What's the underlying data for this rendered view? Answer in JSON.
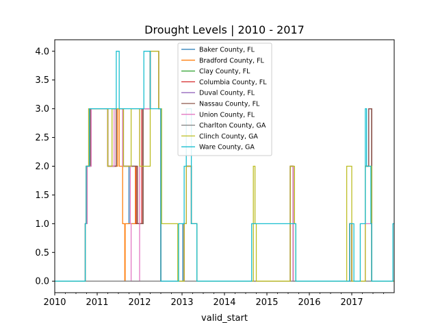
{
  "chart_data": {
    "type": "line",
    "title": "Drought Levels | 2010 - 2017",
    "xlabel": "valid_start",
    "ylabel": "",
    "xlim": [
      2010.0,
      2018.0
    ],
    "ylim": [
      -0.2,
      4.2
    ],
    "x_ticks": [
      2010,
      2011,
      2012,
      2013,
      2014,
      2015,
      2016,
      2017
    ],
    "y_ticks": [
      0.0,
      0.5,
      1.0,
      1.5,
      2.0,
      2.5,
      3.0,
      3.5,
      4.0
    ],
    "x_tick_labels": [
      "2010",
      "2011",
      "2012",
      "2013",
      "2014",
      "2015",
      "2016",
      "2017"
    ],
    "y_tick_labels": [
      "0.0",
      "0.5",
      "1.0",
      "1.5",
      "2.0",
      "2.5",
      "3.0",
      "3.5",
      "4.0"
    ],
    "grid": false,
    "legend_position": "top-center",
    "series": [
      {
        "name": "Baker County, FL",
        "color": "#1f77b4",
        "x": [
          2010.0,
          2010.72,
          2010.74,
          2010.8,
          2011.25,
          2011.45,
          2011.62,
          2011.75,
          2011.8,
          2012.08,
          2012.25,
          2012.45,
          2012.5,
          2013.0,
          2013.02,
          2013.1,
          2013.22,
          2013.35,
          2015.42,
          2015.55,
          2015.62,
          2016.9,
          2016.95,
          2017.0,
          2017.18,
          2017.32,
          2017.4,
          2017.47,
          2018.0
        ],
        "y": [
          0,
          1,
          2,
          3,
          2,
          3,
          2,
          1,
          1,
          3,
          4,
          3,
          0,
          0,
          1,
          2,
          1,
          0,
          0,
          2,
          0,
          0,
          1,
          0,
          0,
          2,
          3,
          0,
          0
        ]
      },
      {
        "name": "Bradford County, FL",
        "color": "#ff7f0e",
        "x": [
          2010.0,
          2010.72,
          2010.74,
          2010.82,
          2011.25,
          2011.48,
          2011.52,
          2011.6,
          2011.65,
          2011.66,
          2011.9,
          2011.95,
          2012.08,
          2012.25,
          2012.45,
          2012.5,
          2013.0,
          2013.05,
          2013.1,
          2013.22,
          2013.35,
          2015.42,
          2015.55,
          2015.62,
          2016.9,
          2016.95,
          2017.0,
          2017.18,
          2017.32,
          2017.4,
          2017.47,
          2018.0
        ],
        "y": [
          0,
          1,
          2,
          3,
          2,
          3,
          2,
          1,
          0,
          1,
          2,
          1,
          3,
          4,
          3,
          0,
          0,
          1,
          2,
          1,
          0,
          0,
          2,
          0,
          0,
          1,
          0,
          0,
          2,
          3,
          0,
          0
        ]
      },
      {
        "name": "Clay County, FL",
        "color": "#2ca02c",
        "x": [
          2010.0,
          2010.72,
          2010.76,
          2010.84,
          2011.25,
          2011.45,
          2011.6,
          2011.8,
          2011.92,
          2012.08,
          2012.25,
          2012.45,
          2012.5,
          2013.0,
          2013.05,
          2013.1,
          2013.22,
          2013.35,
          2015.42,
          2015.55,
          2015.62,
          2016.9,
          2016.95,
          2017.0,
          2017.18,
          2017.32,
          2017.4,
          2017.47,
          2018.0
        ],
        "y": [
          0,
          1,
          2,
          3,
          2,
          3,
          2,
          2,
          1,
          3,
          4,
          3,
          0,
          0,
          1,
          2,
          1,
          0,
          0,
          2,
          0,
          0,
          1,
          0,
          0,
          2,
          3,
          0,
          0
        ]
      },
      {
        "name": "Columbia County, FL",
        "color": "#d62728",
        "x": [
          2010.0,
          2010.72,
          2010.76,
          2010.84,
          2011.25,
          2011.45,
          2011.62,
          2011.85,
          2011.92,
          2012.05,
          2012.25,
          2012.45,
          2012.5,
          2013.0,
          2013.05,
          2013.1,
          2013.22,
          2013.35,
          2015.42,
          2015.55,
          2015.62,
          2016.9,
          2016.95,
          2017.0,
          2017.18,
          2017.32,
          2017.4,
          2017.47,
          2018.0
        ],
        "y": [
          0,
          1,
          2,
          3,
          2,
          3,
          2,
          2,
          1,
          3,
          4,
          3,
          0,
          0,
          1,
          2,
          1,
          0,
          0,
          2,
          0,
          0,
          1,
          0,
          0,
          2,
          3,
          0,
          0
        ]
      },
      {
        "name": "Duval County, FL",
        "color": "#9467bd",
        "x": [
          2010.0,
          2010.72,
          2010.76,
          2010.8,
          2011.25,
          2011.45,
          2011.6,
          2011.8,
          2011.95,
          2012.08,
          2012.25,
          2012.45,
          2012.5,
          2013.0,
          2013.05,
          2013.1,
          2013.22,
          2013.35,
          2015.42,
          2015.55,
          2015.62,
          2016.9,
          2016.95,
          2017.0,
          2017.18,
          2017.32,
          2017.4,
          2017.47,
          2018.0
        ],
        "y": [
          0,
          1,
          2,
          3,
          2,
          3,
          2,
          2,
          1,
          3,
          4,
          3,
          0,
          0,
          1,
          2,
          1,
          0,
          0,
          2,
          0,
          0,
          1,
          0,
          0,
          2,
          3,
          0,
          0
        ]
      },
      {
        "name": "Nassau County, FL",
        "color": "#8c564b",
        "x": [
          2010.0,
          2010.72,
          2010.76,
          2010.84,
          2011.25,
          2011.45,
          2011.6,
          2011.8,
          2011.95,
          2012.08,
          2012.25,
          2012.45,
          2012.5,
          2013.0,
          2013.05,
          2013.1,
          2013.22,
          2013.35,
          2015.42,
          2015.55,
          2015.62,
          2016.9,
          2016.95,
          2017.0,
          2017.18,
          2017.32,
          2017.4,
          2017.47,
          2018.0
        ],
        "y": [
          0,
          1,
          2,
          3,
          2,
          3,
          2,
          2,
          1,
          3,
          4,
          3,
          0,
          0,
          1,
          2,
          1,
          0,
          0,
          2,
          0,
          0,
          1,
          0,
          0,
          2,
          3,
          0,
          0
        ]
      },
      {
        "name": "Union County, FL",
        "color": "#e377c2",
        "x": [
          2010.0,
          2010.72,
          2010.76,
          2010.86,
          2011.25,
          2011.4,
          2011.6,
          2011.78,
          2011.8,
          2012.0,
          2012.25,
          2012.45,
          2012.5,
          2013.0,
          2013.05,
          2013.1,
          2013.22,
          2013.35,
          2015.42,
          2015.55,
          2015.62,
          2016.9,
          2016.95,
          2017.0,
          2017.18,
          2017.32,
          2017.4,
          2017.47,
          2018.0
        ],
        "y": [
          0,
          1,
          2,
          3,
          2,
          3,
          2,
          1,
          0,
          3,
          4,
          3,
          0,
          0,
          1,
          2,
          1,
          0,
          0,
          2,
          0,
          0,
          1,
          0,
          0,
          1,
          1,
          0,
          0
        ]
      },
      {
        "name": "Charlton County, GA",
        "color": "#7f7f7f",
        "x": [
          2010.0,
          2018.0
        ],
        "y": [
          0,
          0
        ]
      },
      {
        "name": "Clinch County, GA",
        "color": "#bcbd22",
        "x": [
          2010.0,
          2010.72,
          2010.74,
          2010.8,
          2011.25,
          2011.35,
          2011.62,
          2011.8,
          2012.0,
          2012.25,
          2012.45,
          2012.52,
          2012.9,
          2013.05,
          2013.1,
          2013.22,
          2013.35,
          2014.66,
          2014.68,
          2014.72,
          2014.75,
          2015.42,
          2015.55,
          2015.65,
          2015.68,
          2016.88,
          2017.0,
          2017.18,
          2017.32,
          2017.4,
          2017.47,
          2018.0
        ],
        "y": [
          0,
          1,
          2,
          3,
          2,
          3,
          2,
          3,
          2,
          4,
          3,
          1,
          0,
          1,
          2,
          1,
          0,
          0,
          2,
          1,
          0,
          0,
          2,
          1,
          0,
          2,
          0,
          0,
          2,
          2,
          0,
          0
        ]
      },
      {
        "name": "Ware County, GA",
        "color": "#17becf",
        "x": [
          2010.0,
          2010.72,
          2010.74,
          2010.82,
          2011.25,
          2011.45,
          2011.52,
          2011.8,
          2012.1,
          2012.25,
          2012.45,
          2012.5,
          2012.92,
          2013.05,
          2013.1,
          2013.22,
          2013.35,
          2014.62,
          2014.64,
          2015.4,
          2015.42,
          2015.65,
          2015.68,
          2016.9,
          2016.95,
          2017.05,
          2017.2,
          2017.32,
          2017.35,
          2017.45,
          2017.47,
          2017.97,
          2018.0
        ],
        "y": [
          0,
          1,
          2,
          3,
          3,
          4,
          3,
          3,
          4,
          3,
          3,
          0,
          1,
          2,
          3,
          1,
          0,
          0,
          1,
          1,
          1,
          1,
          0,
          0,
          1,
          0,
          1,
          3,
          2,
          1,
          0,
          1,
          1
        ]
      }
    ]
  }
}
